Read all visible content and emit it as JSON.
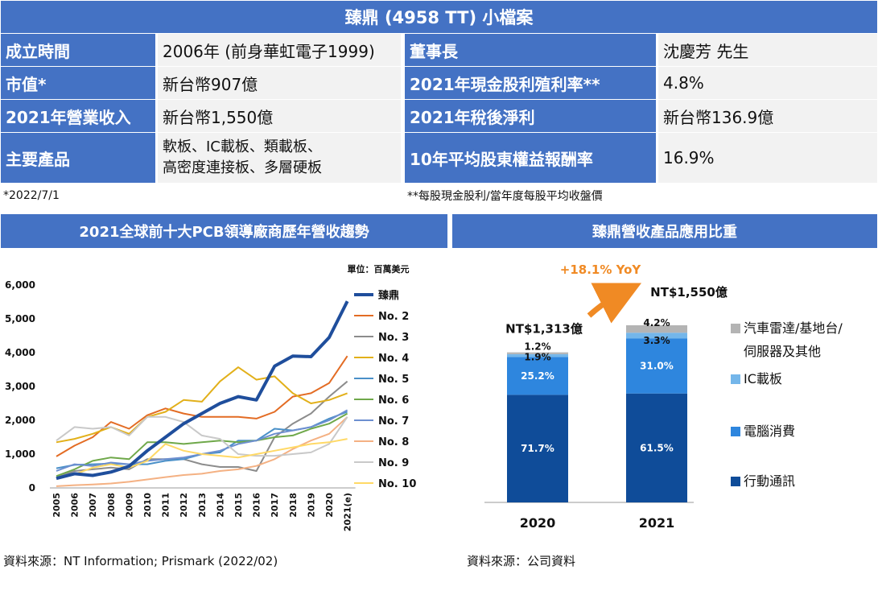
{
  "title": "臻鼎 (4958 TT) 小檔案",
  "profile": [
    {
      "label1": "成立時間",
      "value1": "2006年 (前身華虹電子1999)",
      "label2": "董事長",
      "value2": "沈慶芳 先生"
    },
    {
      "label1": "市值*",
      "value1": "新台幣907億",
      "label2": "2021年現金股利殖利率**",
      "value2": "4.8%"
    },
    {
      "label1": "2021年營業收入",
      "value1": "新台幣1,550億",
      "label2": "2021年稅後淨利",
      "value2": "新台幣136.9億"
    },
    {
      "label1": "主要產品",
      "value1_line1": "軟板、IC載板、類載板、",
      "value1_line2": "高密度連接板、多層硬板",
      "label2": "10年平均股東權益報酬率",
      "value2": "16.9%"
    }
  ],
  "notes": {
    "left": "*2022/7/1",
    "right": "**每股現金股利/當年度每股平均收盤價"
  },
  "left_title": "2021全球前十大PCB領導廠商歷年營收趨勢",
  "right_title": "臻鼎營收產品應用比重",
  "line_unit": "單位：百萬美元",
  "source_left": "資料來源：NT Information; Prismark (2022/02)",
  "source_right": "資料來源：公司資料",
  "colors": {
    "header": "#4472c4"
  },
  "chart_data": [
    {
      "type": "line",
      "y_ticks": [
        "0",
        "1,000",
        "2,000",
        "3,000",
        "4,000",
        "5,000",
        "6,000"
      ],
      "ylim": [
        0,
        6000
      ],
      "x": [
        "2005",
        "2006",
        "2007",
        "2008",
        "2009",
        "2010",
        "2011",
        "2012",
        "2013",
        "2014",
        "2015",
        "2016",
        "2017",
        "2018",
        "2019",
        "2020",
        "2021(e)"
      ],
      "series": [
        {
          "name": "臻鼎",
          "color": "#1f4e9c",
          "width": 4,
          "values": [
            280,
            420,
            370,
            470,
            640,
            1100,
            1500,
            1900,
            2200,
            2500,
            2700,
            2600,
            3600,
            3900,
            3880,
            4450,
            5520
          ]
        },
        {
          "name": "No. 2",
          "color": "#e36c24",
          "width": 2,
          "values": [
            930,
            1250,
            1500,
            1950,
            1750,
            2150,
            2350,
            2200,
            2100,
            2100,
            2100,
            2050,
            2250,
            2700,
            2800,
            3100,
            3900
          ]
        },
        {
          "name": "No. 3",
          "color": "#8c8c8c",
          "width": 2,
          "values": [
            300,
            500,
            550,
            600,
            550,
            850,
            850,
            850,
            700,
            620,
            620,
            500,
            1500,
            1900,
            2200,
            2700,
            3150
          ]
        },
        {
          "name": "No. 4",
          "color": "#e2b01a",
          "width": 2,
          "values": [
            1350,
            1450,
            1600,
            1800,
            1600,
            2100,
            2250,
            2600,
            2550,
            3150,
            3570,
            3200,
            3300,
            2800,
            2500,
            2600,
            2800
          ]
        },
        {
          "name": "No. 5",
          "color": "#4a90c8",
          "width": 2,
          "values": [
            580,
            680,
            700,
            720,
            700,
            700,
            800,
            850,
            1000,
            1050,
            1400,
            1400,
            1750,
            1700,
            1800,
            2050,
            2250
          ]
        },
        {
          "name": "No. 6",
          "color": "#6fa84a",
          "width": 2,
          "values": [
            350,
            550,
            800,
            900,
            850,
            1350,
            1350,
            1300,
            1350,
            1400,
            1350,
            1400,
            1500,
            1550,
            1750,
            1900,
            2200
          ]
        },
        {
          "name": "No. 7",
          "color": "#6d8fd0",
          "width": 2,
          "values": [
            500,
            700,
            650,
            750,
            700,
            800,
            850,
            900,
            1000,
            1100,
            1300,
            1400,
            1600,
            1700,
            1800,
            2000,
            2300
          ]
        },
        {
          "name": "No. 8",
          "color": "#f4b183",
          "width": 2,
          "values": [
            50,
            80,
            100,
            130,
            180,
            250,
            320,
            380,
            420,
            500,
            550,
            650,
            850,
            1150,
            1400,
            1600,
            2100
          ]
        },
        {
          "name": "No. 9",
          "color": "#c9c9c9",
          "width": 2,
          "values": [
            1400,
            1800,
            1750,
            1800,
            1550,
            2100,
            2100,
            1950,
            1550,
            1450,
            1000,
            950,
            950,
            1000,
            1050,
            1300,
            2100
          ]
        },
        {
          "name": "No. 10",
          "color": "#ffd966",
          "width": 2,
          "values": [
            300,
            400,
            600,
            700,
            600,
            800,
            1300,
            1100,
            1000,
            950,
            900,
            1000,
            1100,
            1200,
            1300,
            1350,
            1450
          ]
        }
      ]
    },
    {
      "type": "bar",
      "stacked": true,
      "categories": [
        "2020",
        "2021"
      ],
      "totals": [
        "NT$1,313億",
        "NT$1,550億"
      ],
      "yoy_label": "+18.1% YoY",
      "series": [
        {
          "name": "行動通訊",
          "color": "#0f4c99",
          "values": [
            71.7,
            61.5
          ],
          "labels": [
            "71.7%",
            "61.5%"
          ]
        },
        {
          "name": "電腦消費",
          "color": "#2e86de",
          "values": [
            25.2,
            31.0
          ],
          "labels": [
            "25.2%",
            "31.0%"
          ]
        },
        {
          "name": "IC載板",
          "color": "#74b6ea",
          "values": [
            1.9,
            3.3
          ],
          "labels": [
            "1.9%",
            "3.3%"
          ]
        },
        {
          "name": "汽車雷達/基地台/伺服器及其他",
          "name_line1": "汽車雷達/基地台/",
          "name_line2": "伺服器及其他",
          "color": "#b4b4b4",
          "values": [
            1.2,
            4.2
          ],
          "labels": [
            "1.2%",
            "4.2%"
          ]
        }
      ]
    }
  ]
}
